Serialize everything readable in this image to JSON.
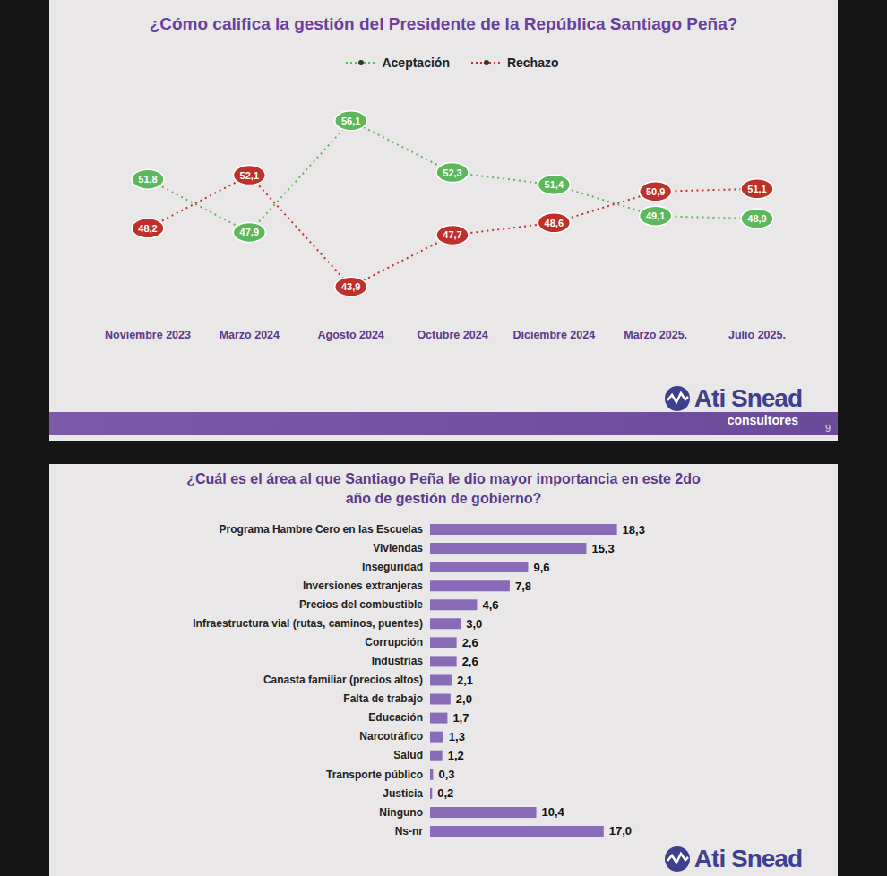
{
  "chart_data": [
    {
      "type": "line",
      "title": "¿Cómo califica la gestión del Presidente de la República Santiago Peña?",
      "categories": [
        "Noviembre 2023",
        "Marzo 2024",
        "Agosto 2024",
        "Octubre 2024",
        "Diciembre 2024",
        "Marzo 2025.",
        "Julio 2025."
      ],
      "series": [
        {
          "name": "Aceptación",
          "color": "#5cb85c",
          "values": [
            51.8,
            47.9,
            56.1,
            52.3,
            51.4,
            49.1,
            48.9
          ],
          "value_labels": [
            "51,8",
            "47,9",
            "56,1",
            "52,3",
            "51,4",
            "49,1",
            "48,9"
          ],
          "line_style": "dotted",
          "marker": "none"
        },
        {
          "name": "Rechazo",
          "color": "#c0302b",
          "values": [
            48.2,
            52.1,
            43.9,
            47.7,
            48.6,
            50.9,
            51.1
          ],
          "value_labels": [
            "48,2",
            "52,1",
            "43,9",
            "47,7",
            "48,6",
            "50,9",
            "51,1"
          ],
          "line_style": "dotted",
          "marker": "none"
        }
      ],
      "ylim": [
        42,
        58
      ],
      "legend": "top",
      "data_labels": true,
      "tick_labels": "x",
      "grid": false
    },
    {
      "type": "bar",
      "orientation": "horizontal",
      "title": "¿Cuál es el área al que Santiago Peña le dio mayor importancia en este 2do año de gestión de gobierno?",
      "categories": [
        "Programa Hambre Cero en las Escuelas",
        "Viviendas",
        "Inseguridad",
        "Inversiones extranjeras",
        "Precios del combustible",
        "Infraestructura vial (rutas, caminos, puentes)",
        "Corrupción",
        "Industrias",
        "Canasta familiar (precios altos)",
        "Falta de trabajo",
        "Educación",
        "Narcotráfico",
        "Salud",
        "Transporte público",
        "Justicia",
        "Ninguno",
        "Ns-nr"
      ],
      "values": [
        18.3,
        15.3,
        9.6,
        7.8,
        4.6,
        3.0,
        2.6,
        2.6,
        2.1,
        2.0,
        1.7,
        1.3,
        1.2,
        0.3,
        0.2,
        10.4,
        17.0
      ],
      "value_labels": [
        "18,3",
        "15,3",
        "9,6",
        "7,8",
        "4,6",
        "3,0",
        "2,6",
        "2,6",
        "2,1",
        "2,0",
        "1,7",
        "1,3",
        "1,2",
        "0,3",
        "0,2",
        "10,4",
        "17,0"
      ],
      "color": "#8a6bb8",
      "xlim": [
        0,
        20
      ],
      "data_labels": true,
      "tick_labels": "y",
      "grid": false
    }
  ],
  "branding": {
    "name": "Ati Snead",
    "sub": "consultores",
    "page": 9
  }
}
